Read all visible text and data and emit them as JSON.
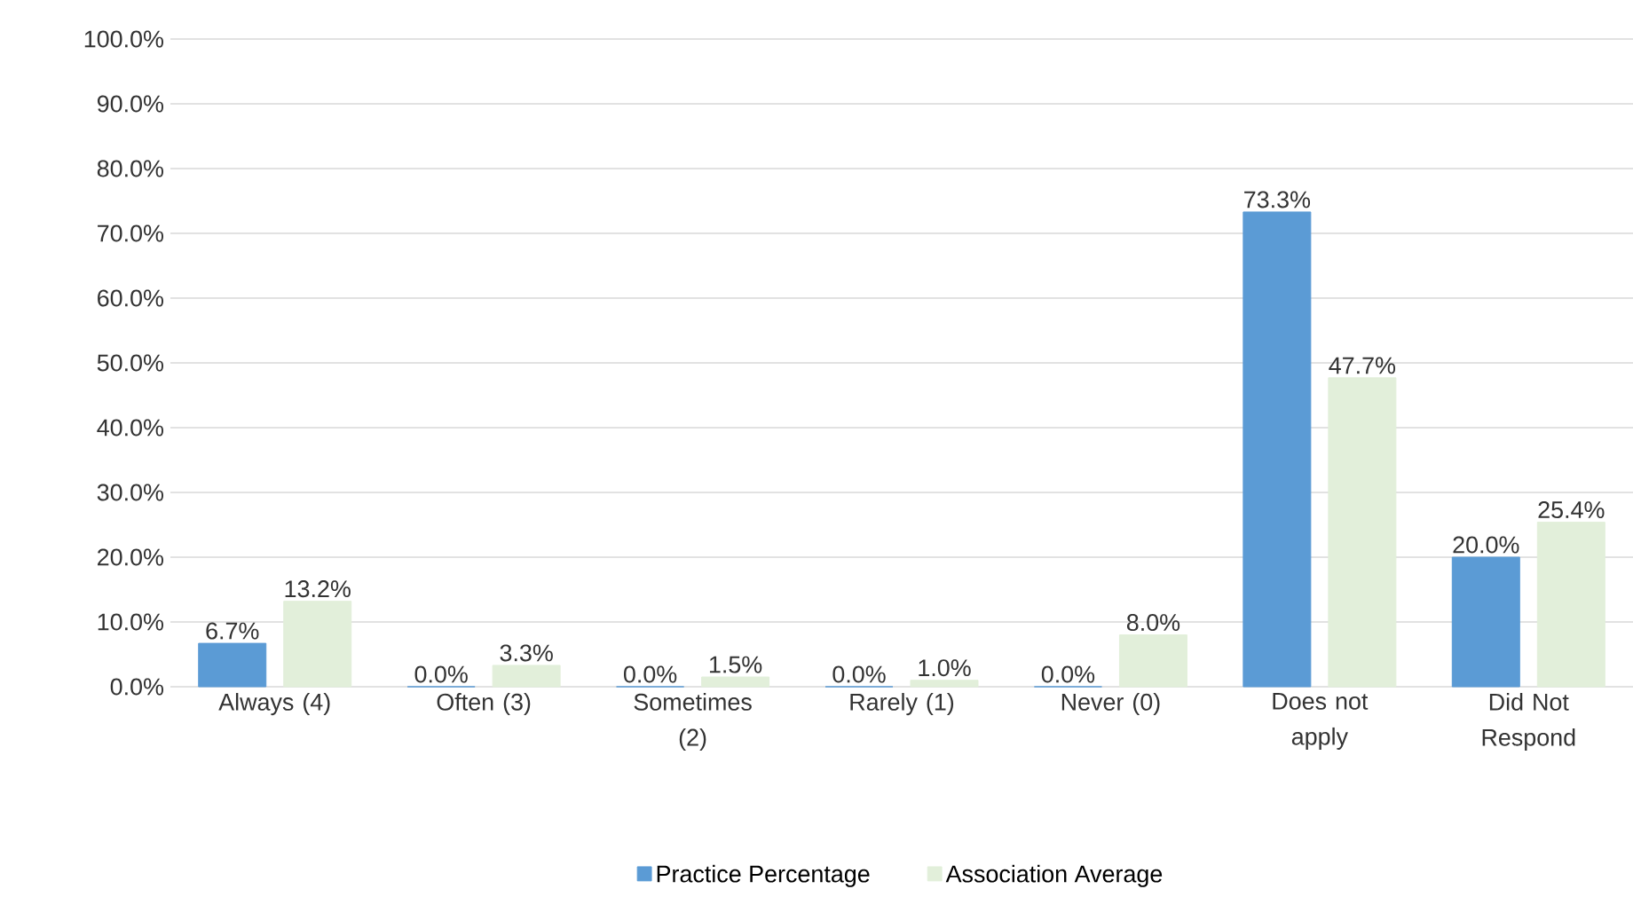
{
  "chart_data": {
    "type": "bar",
    "categories": [
      "Always (4)",
      "Often (3)",
      "Sometimes (2)",
      "Rarely (1)",
      "Never (0)",
      "Does not apply",
      "Did Not Respond"
    ],
    "series": [
      {
        "name": "Practice Percentage",
        "color": "#5b9bd5",
        "values": [
          6.7,
          0.0,
          0.0,
          0.0,
          0.0,
          73.3,
          20.0
        ],
        "value_labels": [
          "6.7%",
          "0.0%",
          "0.0%",
          "0.0%",
          "0.0%",
          "73.3%",
          "20.0%"
        ]
      },
      {
        "name": "Association Average",
        "color": "#e2efda",
        "values": [
          13.2,
          3.3,
          1.5,
          1.0,
          8.0,
          47.7,
          25.4
        ],
        "value_labels": [
          "13.2%",
          "3.3%",
          "1.5%",
          "1.0%",
          "8.0%",
          "47.7%",
          "25.4%"
        ]
      }
    ],
    "ylim": [
      0,
      100
    ],
    "yticks": [
      {
        "value": 0,
        "label": "0.0%"
      },
      {
        "value": 10,
        "label": "10.0%"
      },
      {
        "value": 20,
        "label": "20.0%"
      },
      {
        "value": 30,
        "label": "30.0%"
      },
      {
        "value": 40,
        "label": "40.0%"
      },
      {
        "value": 50,
        "label": "50.0%"
      },
      {
        "value": 60,
        "label": "60.0%"
      },
      {
        "value": 70,
        "label": "70.0%"
      },
      {
        "value": 80,
        "label": "80.0%"
      },
      {
        "value": 90,
        "label": "90.0%"
      },
      {
        "value": 100,
        "label": "100.0%"
      }
    ],
    "grid": "y",
    "legend": "bottom"
  }
}
